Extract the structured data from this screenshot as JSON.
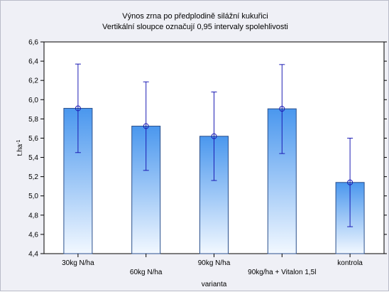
{
  "chart_data": {
    "type": "bar",
    "title": "Výnos zrna po předplodině silážní kukuřici",
    "subtitle": "Vertikální sloupce označují 0,95 intervaly spolehlivosti",
    "xlabel": "varianta",
    "ylabel": "t.ha",
    "ylabel_superscript": "-1",
    "categories": [
      "30kg N/ha",
      "60kg N/ha",
      "90kg N/ha",
      "90kg/ha + Vitalon 1,5l",
      "kontrola"
    ],
    "values": [
      5.91,
      5.725,
      5.62,
      5.905,
      5.14
    ],
    "ci_lower": [
      5.45,
      5.265,
      5.16,
      5.44,
      4.68
    ],
    "ci_upper": [
      6.37,
      6.185,
      6.08,
      6.365,
      5.6
    ],
    "ylim": [
      4.4,
      6.6
    ],
    "yticks": [
      "4,4",
      "4,6",
      "4,8",
      "5,0",
      "5,2",
      "5,4",
      "5,6",
      "5,8",
      "6,0",
      "6,2",
      "6,4",
      "6,6"
    ],
    "grid": false,
    "colors": {
      "bar_top": "#4a97ee",
      "bar_bottom": "#f2f8ff",
      "bar_edge": "#2a4f8c",
      "errorbar": "#1c1cb4",
      "plot_bg": "#ffffff",
      "figure_bg": "#eff0f6"
    }
  }
}
